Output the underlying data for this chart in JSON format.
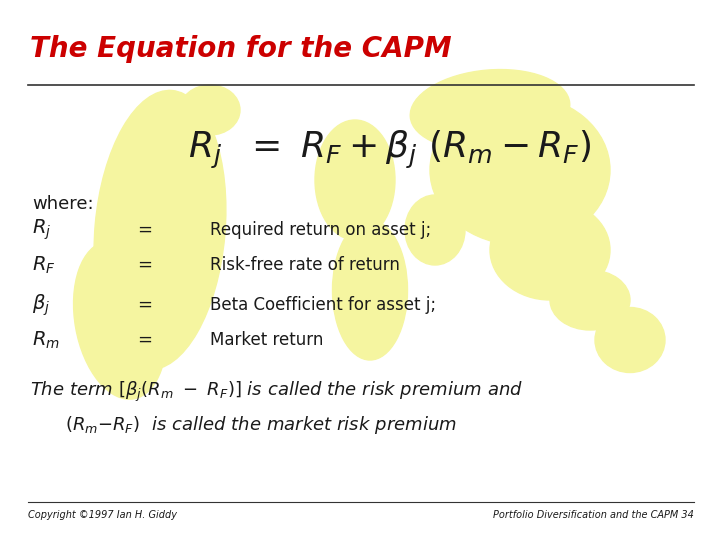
{
  "title": "The Equation for the CAPM",
  "title_color": "#cc0000",
  "bg_color": "#ffffff",
  "map_color": "#f5f5a0",
  "line_color": "#333333",
  "text_color": "#1a1a1a",
  "footer_left": "Copyright ©1997 Ian H. Giddy",
  "footer_right": "Portfolio Diversification and the CAPM 34",
  "eq_fontsize": 26,
  "title_fontsize": 20,
  "body_fontsize": 13,
  "desc_fontsize": 12,
  "footer_fontsize": 7
}
